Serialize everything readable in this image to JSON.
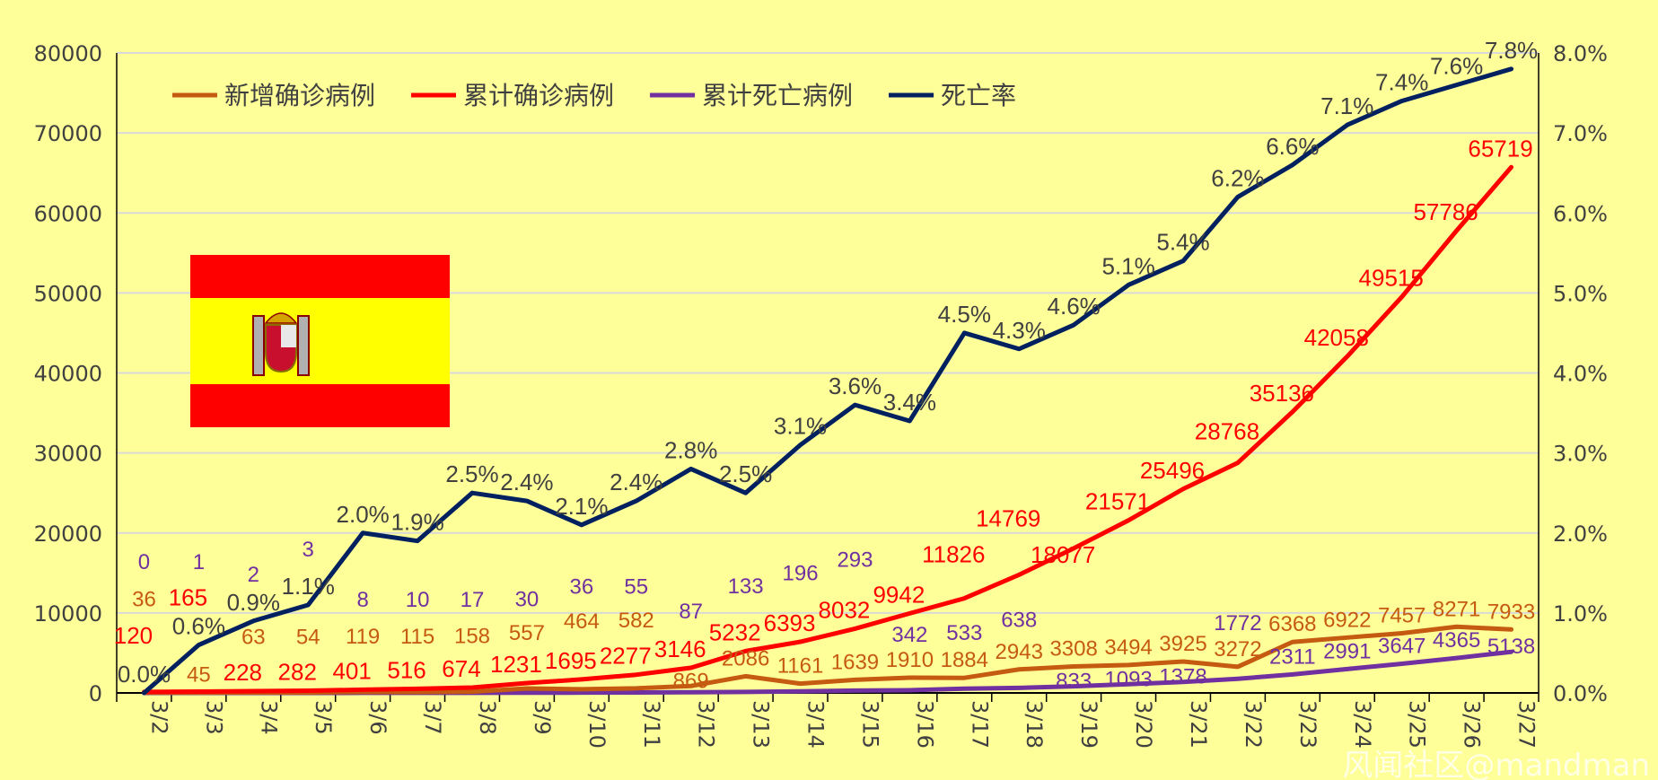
{
  "chart_data": {
    "type": "line",
    "title": "",
    "xlabel": "",
    "ylabel": "",
    "y2label": "",
    "categories": [
      "3/2",
      "3/3",
      "3/4",
      "3/5",
      "3/6",
      "3/7",
      "3/8",
      "3/9",
      "3/10",
      "3/11",
      "3/12",
      "3/13",
      "3/14",
      "3/15",
      "3/16",
      "3/17",
      "3/18",
      "3/19",
      "3/20",
      "3/21",
      "3/22",
      "3/23",
      "3/24",
      "3/25",
      "3/26",
      "3/27"
    ],
    "ylim": [
      0,
      80000
    ],
    "y_ticks": [
      "0",
      "10000",
      "20000",
      "30000",
      "40000",
      "50000",
      "60000",
      "70000",
      "80000"
    ],
    "y2lim": [
      0,
      8.0
    ],
    "y2_ticks": [
      "0.0%",
      "1.0%",
      "2.0%",
      "3.0%",
      "4.0%",
      "5.0%",
      "6.0%",
      "7.0%",
      "8.0%"
    ],
    "grid": true,
    "legend_position": "top-left",
    "series": [
      {
        "name": "新增确诊病例",
        "color": "#c55a11",
        "axis": "left",
        "values": [
          36,
          45,
          63,
          54,
          119,
          115,
          158,
          557,
          464,
          582,
          869,
          2086,
          1161,
          1639,
          1910,
          1884,
          2943,
          3308,
          3494,
          3925,
          3272,
          6368,
          6922,
          7457,
          8271,
          7933
        ]
      },
      {
        "name": "累计确诊病例",
        "color": "#ff0000",
        "axis": "left",
        "values": [
          120,
          165,
          228,
          282,
          401,
          516,
          674,
          1231,
          1695,
          2277,
          3146,
          5232,
          6393,
          8032,
          9942,
          11826,
          14769,
          18077,
          21571,
          25496,
          28768,
          35136,
          42058,
          49515,
          57786,
          65719
        ]
      },
      {
        "name": "累计死亡病例",
        "color": "#7030a0",
        "axis": "left",
        "values": [
          0,
          1,
          2,
          3,
          8,
          10,
          17,
          30,
          36,
          55,
          87,
          133,
          196,
          293,
          342,
          533,
          638,
          833,
          1093,
          1378,
          1772,
          2311,
          2991,
          3647,
          4365,
          5138
        ]
      },
      {
        "name": "死亡率",
        "color": "#002060",
        "axis": "right",
        "unit": "%",
        "values": [
          0.0,
          0.6,
          0.9,
          1.1,
          2.0,
          1.9,
          2.5,
          2.4,
          2.1,
          2.4,
          2.8,
          2.5,
          3.1,
          3.6,
          3.4,
          4.5,
          4.3,
          4.6,
          5.1,
          5.4,
          6.2,
          6.6,
          7.1,
          7.4,
          7.6,
          7.8
        ]
      }
    ]
  },
  "watermark": "风闻社区@mandman",
  "flag": "Spain"
}
